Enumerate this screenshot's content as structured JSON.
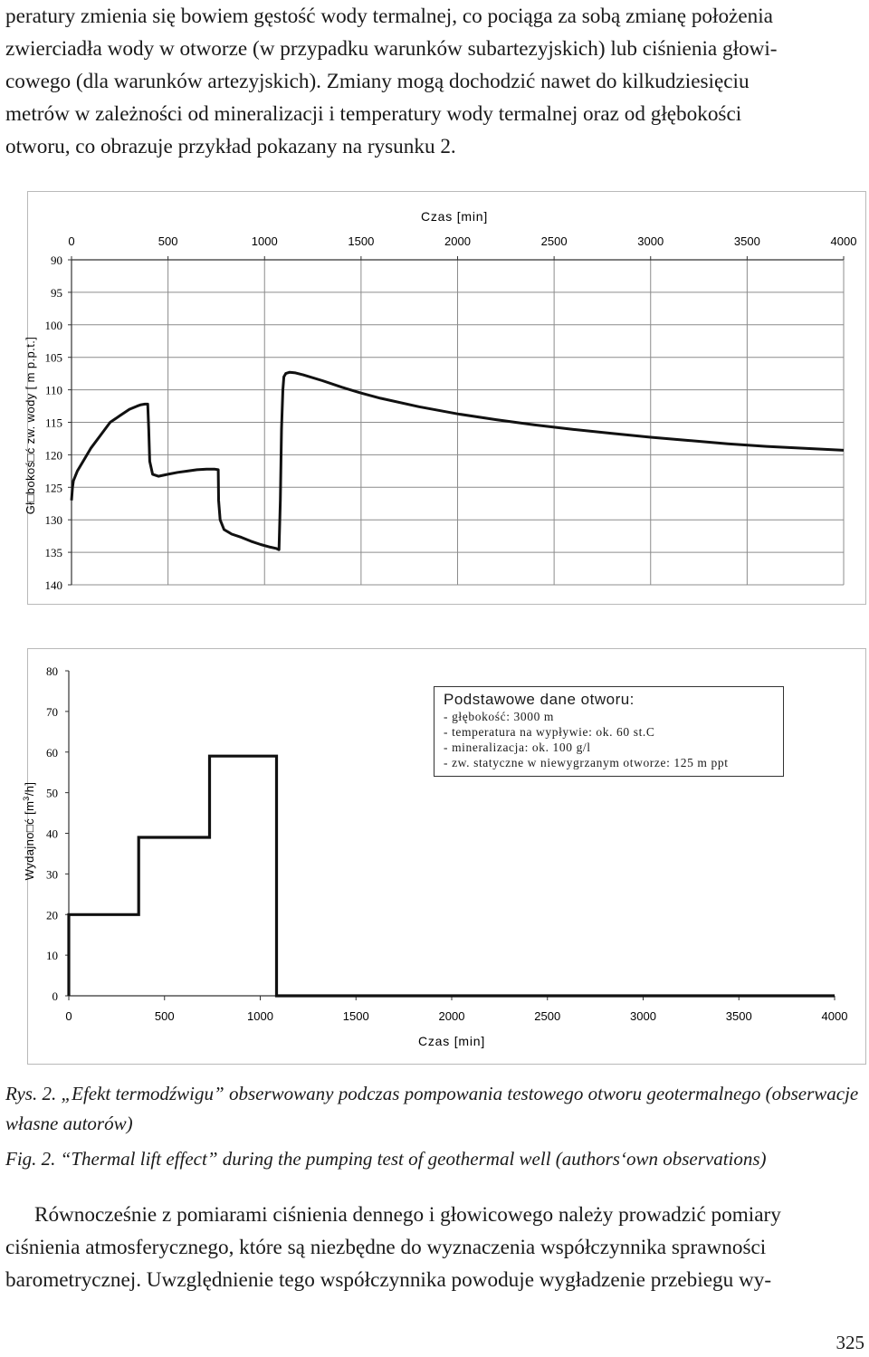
{
  "text": {
    "para_top_lines": [
      "peratury zmienia się bowiem gęstość wody termalnej, co pociąga za sobą zmianę położenia",
      "zwierciadła wody w otworze (w przypadku warunków subartezyjskich) lub ciśnienia głowi-",
      "cowego (dla warunków artezyjskich). Zmiany mogą dochodzić nawet do kilkudziesięciu",
      "metrów w zależności od mineralizacji i temperatury wody termalnej oraz od głębokości",
      "otworu, co obrazuje przykład pokazany na rysunku 2."
    ],
    "caption_pl": "Rys. 2. „Efekt termodźwigu” obserwowany podczas pompowania testowego otworu geotermalnego (obserwacje własne autorów)",
    "caption_en": "Fig. 2. “Thermal lift effect” during the pumping test of geothermal well (authors‘own observations)",
    "para_bottom_lines": [
      "Równocześnie z pomiarami ciśnienia dennego i głowicowego należy prowadzić pomiary",
      "ciśnienia atmosferycznego, które są niezbędne do wyznaczenia współczynnika sprawności",
      "barometrycznej. Uwzględnienie tego współczynnika powoduje wygładzenie przebiegu wy-"
    ],
    "page_number": "325"
  },
  "info_box": {
    "title": "Podstawowe dane otworu:",
    "lines": [
      "- głębokość: 3000 m",
      "- temperatura na wypływie: ok. 60 st.C",
      "- mineralizacja: ok. 100 g/l",
      "- zw. statyczne w niewygrzanym otworze: 125 m ppt"
    ]
  },
  "chart_data": [
    {
      "type": "line",
      "xlabel": "Czas [min]",
      "ylabel": "Gł□bokoś□ć zw. wody [ m p.p.t.]",
      "xlim": [
        0,
        4000
      ],
      "ylim": [
        90,
        140
      ],
      "y_inverted": true,
      "x_axis_position": "top",
      "x_ticks": [
        "0",
        "500",
        "1000",
        "1500",
        "2000",
        "2500",
        "3000",
        "3500",
        "4000"
      ],
      "y_ticks": [
        "90",
        "95",
        "100",
        "105",
        "110",
        "115",
        "120",
        "125",
        "130",
        "135",
        "140"
      ],
      "grid": true,
      "series": [
        {
          "x": [
            0,
            5,
            10,
            30,
            60,
            100,
            150,
            200,
            250,
            300,
            340,
            360,
            380,
            395,
            400,
            405,
            420,
            450,
            500,
            550,
            600,
            650,
            700,
            720,
            740,
            760,
            762,
            770,
            790,
            830,
            880,
            930,
            980,
            1030,
            1060,
            1075,
            1082,
            1088,
            1095,
            1100,
            1110,
            1130,
            1160,
            1200,
            1300,
            1400,
            1500,
            1600,
            1800,
            2000,
            2200,
            2400,
            2600,
            2800,
            3000,
            3200,
            3400,
            3600,
            3800,
            4000
          ],
          "y": [
            127,
            125,
            124,
            122.5,
            121,
            119,
            117,
            115,
            114,
            113,
            112.5,
            112.3,
            112.2,
            112.2,
            116,
            121,
            123,
            123.3,
            123,
            122.7,
            122.5,
            122.3,
            122.2,
            122.2,
            122.2,
            122.3,
            127,
            130,
            131.5,
            132.2,
            132.7,
            133.3,
            133.8,
            134.2,
            134.4,
            134.6,
            127,
            116,
            110,
            108,
            107.5,
            107.3,
            107.4,
            107.7,
            108.6,
            109.6,
            110.5,
            111.3,
            112.6,
            113.7,
            114.6,
            115.4,
            116.1,
            116.7,
            117.3,
            117.8,
            118.3,
            118.7,
            119,
            119.3
          ]
        }
      ]
    },
    {
      "type": "line",
      "xlabel": "Czas [min]",
      "ylabel": "Wydajność [m³/h]",
      "ylabel_shown": "Wydajno□ć [m",
      "ylabel_sup": "3",
      "ylabel_tail": "/h]",
      "xlim": [
        0,
        4000
      ],
      "ylim": [
        0,
        80
      ],
      "x_axis_position": "bottom",
      "x_ticks": [
        "0",
        "500",
        "1000",
        "1500",
        "2000",
        "2500",
        "3000",
        "3500",
        "4000"
      ],
      "y_ticks": [
        "0",
        "10",
        "20",
        "30",
        "40",
        "50",
        "60",
        "70",
        "80"
      ],
      "grid": false,
      "series": [
        {
          "x": [
            0,
            0,
            365,
            365,
            735,
            735,
            1085,
            1085,
            4000
          ],
          "y": [
            0,
            20,
            20,
            39,
            39,
            59,
            59,
            0,
            0
          ]
        }
      ]
    }
  ]
}
